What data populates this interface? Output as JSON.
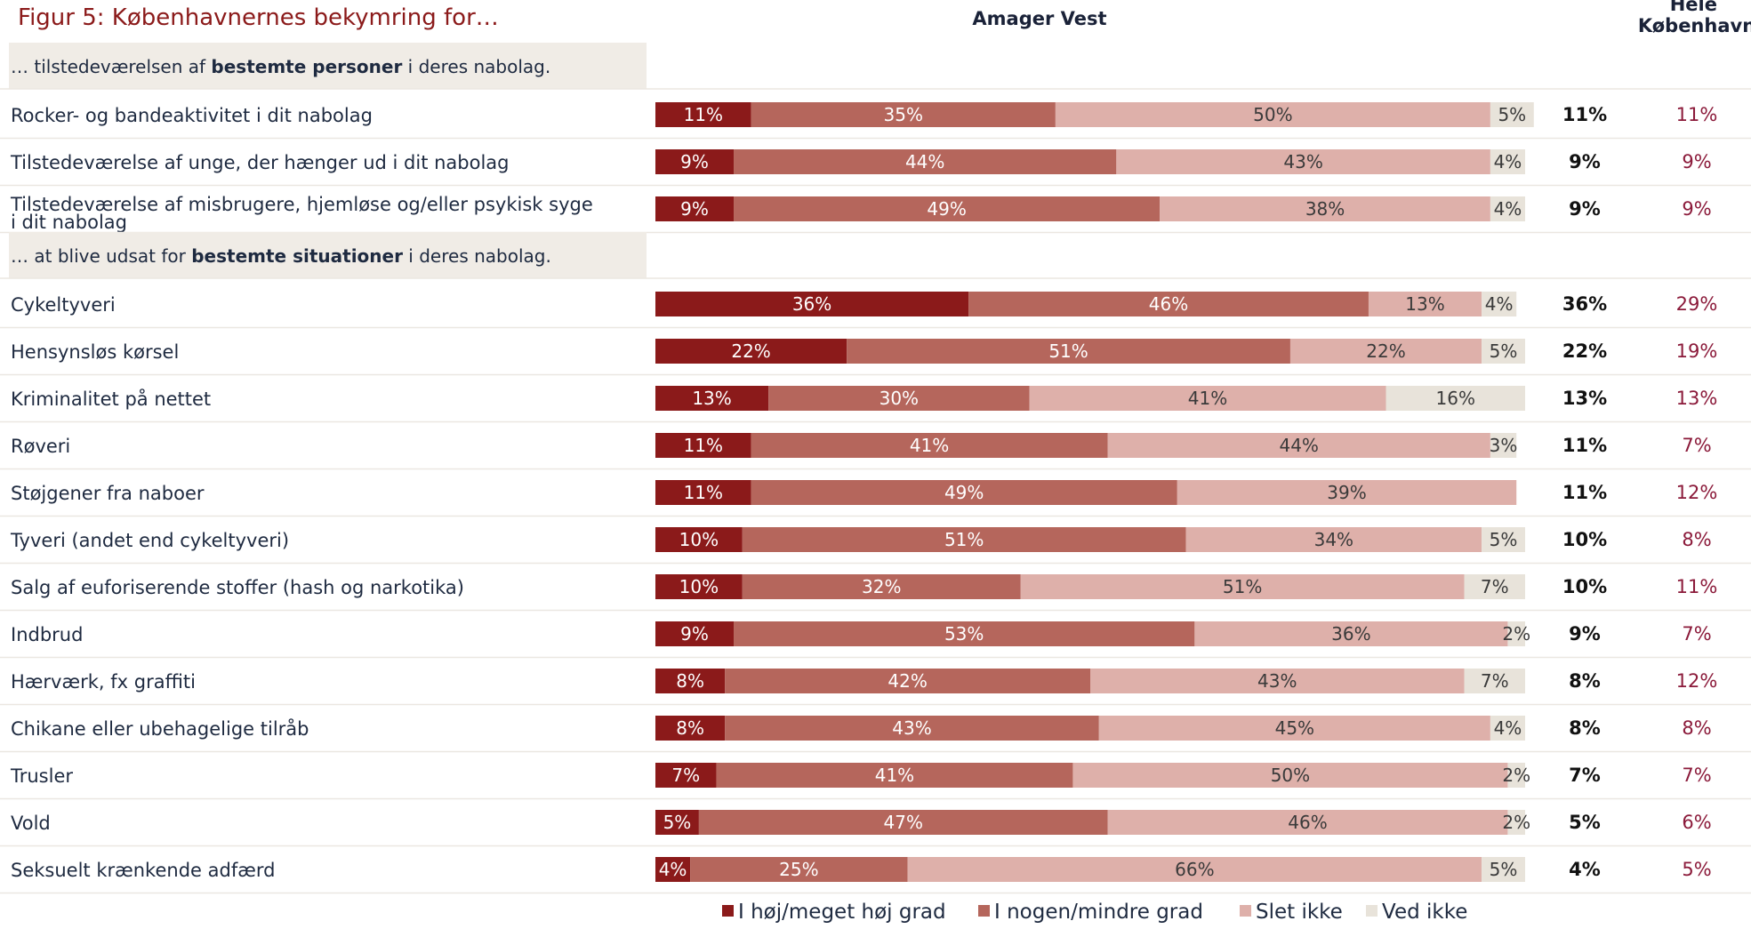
{
  "chart_data": {
    "type": "bar",
    "stacked": true,
    "orientation": "horizontal",
    "title": "Figur 5: Københavnernes bekymring for…",
    "column_headers": {
      "bars": "Amager Vest",
      "summary_1": "",
      "summary_2": "Hele København"
    },
    "series": [
      {
        "name": "I høj/meget høj grad",
        "color": "#8b1a1a"
      },
      {
        "name": "I nogen/mindre grad",
        "color": "#b5665c"
      },
      {
        "name": "Slet ikke",
        "color": "#deb0aa"
      },
      {
        "name": "Ved ikke",
        "color": "#e8e3da"
      }
    ],
    "sections": [
      {
        "prefix": "… tilstedeværelsen af ",
        "bold": "bestemte personer",
        "suffix": " i deres nabolag.",
        "rows": [
          {
            "label": "Rocker- og bandeaktivitet i dit nabolag",
            "values": [
              11,
              35,
              50,
              5
            ],
            "amager_vest": "11%",
            "hele_kbh": "11%"
          },
          {
            "label": "Tilstedeværelse af unge, der hænger ud i dit nabolag",
            "values": [
              9,
              44,
              43,
              4
            ],
            "amager_vest": "9%",
            "hele_kbh": "9%"
          },
          {
            "label": "Tilstedeværelse af misbrugere, hjemløse og/eller psykisk syge",
            "label2": "i dit nabolag",
            "values": [
              9,
              49,
              38,
              4
            ],
            "amager_vest": "9%",
            "hele_kbh": "9%"
          }
        ]
      },
      {
        "prefix": "… at blive udsat for ",
        "bold": "bestemte situationer",
        "suffix": " i deres nabolag.",
        "rows": [
          {
            "label": "Cykeltyveri",
            "values": [
              36,
              46,
              13,
              4
            ],
            "amager_vest": "36%",
            "hele_kbh": "29%"
          },
          {
            "label": "Hensynsløs kørsel",
            "values": [
              22,
              51,
              22,
              5
            ],
            "amager_vest": "22%",
            "hele_kbh": "19%"
          },
          {
            "label": "Kriminalitet på nettet",
            "values": [
              13,
              30,
              41,
              16
            ],
            "amager_vest": "13%",
            "hele_kbh": "13%"
          },
          {
            "label": "Røveri",
            "values": [
              11,
              41,
              44,
              3
            ],
            "amager_vest": "11%",
            "hele_kbh": "7%"
          },
          {
            "label": "Støjgener fra naboer",
            "values": [
              11,
              49,
              39,
              0
            ],
            "amager_vest": "11%",
            "hele_kbh": "12%"
          },
          {
            "label": "Tyveri (andet end cykeltyveri)",
            "values": [
              10,
              51,
              34,
              5
            ],
            "amager_vest": "10%",
            "hele_kbh": "8%"
          },
          {
            "label": "Salg af euforiserende stoffer (hash og narkotika)",
            "values": [
              10,
              32,
              51,
              7
            ],
            "amager_vest": "10%",
            "hele_kbh": "11%"
          },
          {
            "label": "Indbrud",
            "values": [
              9,
              53,
              36,
              2
            ],
            "amager_vest": "9%",
            "hele_kbh": "7%"
          },
          {
            "label": "Hærværk, fx graffiti",
            "values": [
              8,
              42,
              43,
              7
            ],
            "amager_vest": "8%",
            "hele_kbh": "12%"
          },
          {
            "label": "Chikane eller ubehagelige tilråb",
            "values": [
              8,
              43,
              45,
              4
            ],
            "amager_vest": "8%",
            "hele_kbh": "8%"
          },
          {
            "label": "Trusler",
            "values": [
              7,
              41,
              50,
              2
            ],
            "amager_vest": "7%",
            "hele_kbh": "7%"
          },
          {
            "label": "Vold",
            "values": [
              5,
              47,
              46,
              2
            ],
            "amager_vest": "5%",
            "hele_kbh": "6%"
          },
          {
            "label": "Seksuelt krænkende adfærd",
            "values": [
              4,
              25,
              66,
              5
            ],
            "amager_vest": "4%",
            "hele_kbh": "5%"
          }
        ]
      }
    ],
    "xlim": [
      0,
      100
    ],
    "legend_position": "bottom",
    "grid": false
  }
}
